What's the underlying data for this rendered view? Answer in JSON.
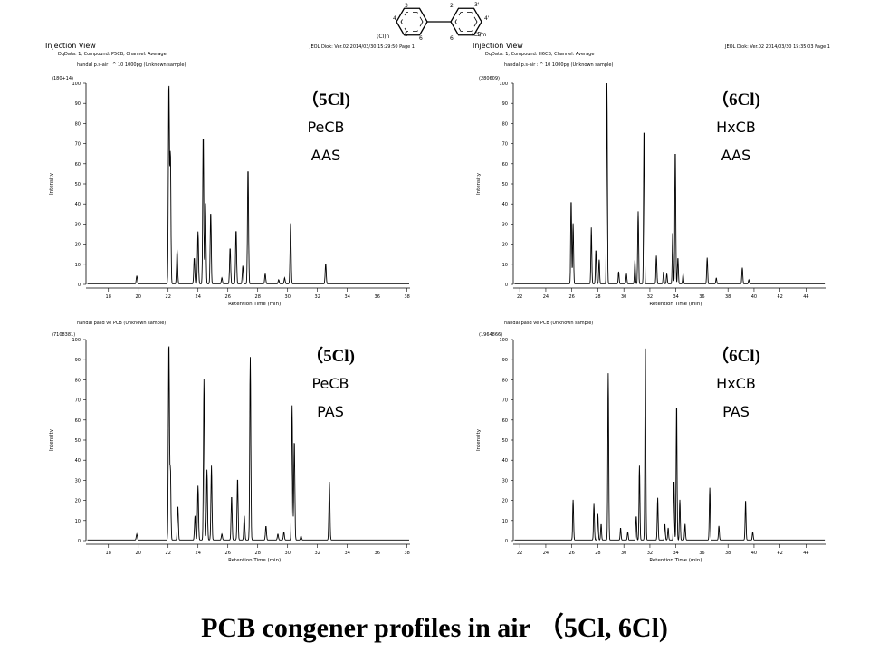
{
  "figure": {
    "title": "PCB congener profiles in air （5Cl, 6Cl)"
  },
  "chart_data": [
    {
      "type": "line",
      "panel_header": "Injection View",
      "data_line": "DqData: 1,  Compound: P5CB,  Channel: Average",
      "instrument_line": "JEOL Diok: Ver.02  2014/03/30  15:29:50  Page 1",
      "sample_line": "handal p.s-air : ^ 10  1000pg (Unknown sample)",
      "max_intensity": "(180+14)",
      "annotation_lines": [
        "（5Cl)",
        "PeCB",
        "AAS"
      ],
      "xlabel": "Retention Time (min)",
      "ylabel": "Intensity",
      "xlim": [
        16.5,
        38.2
      ],
      "ylim": [
        0,
        100
      ],
      "xticks": [
        18,
        20,
        22,
        24,
        26,
        28,
        30,
        32,
        34,
        36,
        38
      ],
      "yticks": [
        0,
        10,
        20,
        30,
        40,
        50,
        60,
        70,
        80,
        90,
        100
      ],
      "peaks": [
        {
          "x": 19.9,
          "y": 4
        },
        {
          "x": 22.05,
          "y": 100
        },
        {
          "x": 22.15,
          "y": 65
        },
        {
          "x": 22.6,
          "y": 17
        },
        {
          "x": 23.75,
          "y": 13
        },
        {
          "x": 24.0,
          "y": 26
        },
        {
          "x": 24.35,
          "y": 75
        },
        {
          "x": 24.5,
          "y": 40
        },
        {
          "x": 24.85,
          "y": 36
        },
        {
          "x": 25.6,
          "y": 3
        },
        {
          "x": 26.15,
          "y": 18
        },
        {
          "x": 26.55,
          "y": 27
        },
        {
          "x": 27.0,
          "y": 9
        },
        {
          "x": 27.35,
          "y": 58
        },
        {
          "x": 28.5,
          "y": 5
        },
        {
          "x": 29.4,
          "y": 2
        },
        {
          "x": 29.8,
          "y": 3
        },
        {
          "x": 30.2,
          "y": 30
        },
        {
          "x": 32.55,
          "y": 10
        }
      ]
    },
    {
      "type": "line",
      "panel_header": "Injection View",
      "data_line": "DqData: 1,  Compound: H6CB,  Channel: Average",
      "instrument_line": "JEOL Diok: Ver.02  2014/03/30  15:35:03  Page 1",
      "sample_line": "handal p.s-air : ^ 10  1000pg (Unknown sample)",
      "max_intensity": "(280609)",
      "annotation_lines": [
        "（6Cl)",
        "HxCB",
        "AAS"
      ],
      "xlabel": "Retention Time (min)",
      "ylabel": "Intensity",
      "xlim": [
        21.5,
        45.5
      ],
      "ylim": [
        0,
        100
      ],
      "xticks": [
        22,
        24,
        26,
        28,
        30,
        32,
        34,
        36,
        38,
        40,
        42,
        44
      ],
      "yticks": [
        0,
        10,
        20,
        30,
        40,
        50,
        60,
        70,
        80,
        90,
        100
      ],
      "peaks": [
        {
          "x": 25.95,
          "y": 42
        },
        {
          "x": 26.1,
          "y": 30
        },
        {
          "x": 27.5,
          "y": 28
        },
        {
          "x": 27.85,
          "y": 17
        },
        {
          "x": 28.1,
          "y": 12
        },
        {
          "x": 28.7,
          "y": 100
        },
        {
          "x": 29.6,
          "y": 6
        },
        {
          "x": 30.2,
          "y": 5
        },
        {
          "x": 30.85,
          "y": 12
        },
        {
          "x": 31.1,
          "y": 36
        },
        {
          "x": 31.55,
          "y": 78
        },
        {
          "x": 32.5,
          "y": 14
        },
        {
          "x": 33.05,
          "y": 6
        },
        {
          "x": 33.3,
          "y": 5
        },
        {
          "x": 33.75,
          "y": 26
        },
        {
          "x": 33.95,
          "y": 67
        },
        {
          "x": 34.15,
          "y": 13
        },
        {
          "x": 34.55,
          "y": 5
        },
        {
          "x": 36.4,
          "y": 13
        },
        {
          "x": 37.1,
          "y": 3
        },
        {
          "x": 39.1,
          "y": 8
        },
        {
          "x": 39.6,
          "y": 2
        }
      ]
    },
    {
      "type": "line",
      "panel_header": "",
      "data_line": "",
      "instrument_line": "",
      "sample_line": "handal pasd ve PCB (Unknown sample)",
      "max_intensity": "(7108381)",
      "annotation_lines": [
        "（5Cl)",
        "PeCB",
        "PAS"
      ],
      "xlabel": "Retention Time (min)",
      "ylabel": "Intensity",
      "xlim": [
        16.5,
        38.2
      ],
      "ylim": [
        0,
        100
      ],
      "xticks": [
        18,
        20,
        22,
        24,
        26,
        28,
        30,
        32,
        34,
        36,
        38
      ],
      "yticks": [
        0,
        10,
        20,
        30,
        40,
        50,
        60,
        70,
        80,
        90,
        100
      ],
      "peaks": [
        {
          "x": 19.9,
          "y": 3
        },
        {
          "x": 22.05,
          "y": 99
        },
        {
          "x": 22.15,
          "y": 35
        },
        {
          "x": 22.65,
          "y": 17
        },
        {
          "x": 23.8,
          "y": 12
        },
        {
          "x": 24.0,
          "y": 27
        },
        {
          "x": 24.4,
          "y": 80
        },
        {
          "x": 24.6,
          "y": 35
        },
        {
          "x": 24.9,
          "y": 37
        },
        {
          "x": 25.6,
          "y": 3
        },
        {
          "x": 26.25,
          "y": 22
        },
        {
          "x": 26.65,
          "y": 31
        },
        {
          "x": 27.1,
          "y": 12
        },
        {
          "x": 27.5,
          "y": 91
        },
        {
          "x": 28.55,
          "y": 7
        },
        {
          "x": 29.35,
          "y": 3
        },
        {
          "x": 29.75,
          "y": 4
        },
        {
          "x": 30.3,
          "y": 67
        },
        {
          "x": 30.45,
          "y": 50
        },
        {
          "x": 30.9,
          "y": 2
        },
        {
          "x": 32.8,
          "y": 29
        }
      ]
    },
    {
      "type": "line",
      "panel_header": "",
      "data_line": "",
      "instrument_line": "",
      "sample_line": "handal pasd ve PCB (Unknown sample)",
      "max_intensity": "(1964866)",
      "annotation_lines": [
        "（6Cl)",
        "HxCB",
        "PAS"
      ],
      "xlabel": "Retention Time (min)",
      "ylabel": "Intensity",
      "xlim": [
        21.5,
        45.5
      ],
      "ylim": [
        0,
        100
      ],
      "xticks": [
        22,
        24,
        26,
        28,
        30,
        32,
        34,
        36,
        38,
        40,
        42,
        44
      ],
      "yticks": [
        0,
        10,
        20,
        30,
        40,
        50,
        60,
        70,
        80,
        90,
        100
      ],
      "peaks": [
        {
          "x": 26.1,
          "y": 20
        },
        {
          "x": 27.7,
          "y": 18
        },
        {
          "x": 28.0,
          "y": 13
        },
        {
          "x": 28.25,
          "y": 8
        },
        {
          "x": 28.8,
          "y": 83
        },
        {
          "x": 29.75,
          "y": 6
        },
        {
          "x": 30.3,
          "y": 4
        },
        {
          "x": 30.95,
          "y": 12
        },
        {
          "x": 31.2,
          "y": 37
        },
        {
          "x": 31.65,
          "y": 99
        },
        {
          "x": 32.6,
          "y": 21
        },
        {
          "x": 33.15,
          "y": 8
        },
        {
          "x": 33.4,
          "y": 6
        },
        {
          "x": 33.85,
          "y": 30
        },
        {
          "x": 34.05,
          "y": 68
        },
        {
          "x": 34.3,
          "y": 20
        },
        {
          "x": 34.7,
          "y": 8
        },
        {
          "x": 36.6,
          "y": 26
        },
        {
          "x": 37.3,
          "y": 7
        },
        {
          "x": 39.35,
          "y": 20
        },
        {
          "x": 39.9,
          "y": 4
        }
      ]
    }
  ],
  "structure": {
    "left_ring_labels": [
      "3",
      "4",
      "5",
      "6"
    ],
    "right_ring_labels": [
      "2'",
      "3'",
      "4'",
      "5'",
      "6'"
    ],
    "left_sub": "(Cl)n",
    "right_sub": "(Cl)m"
  }
}
